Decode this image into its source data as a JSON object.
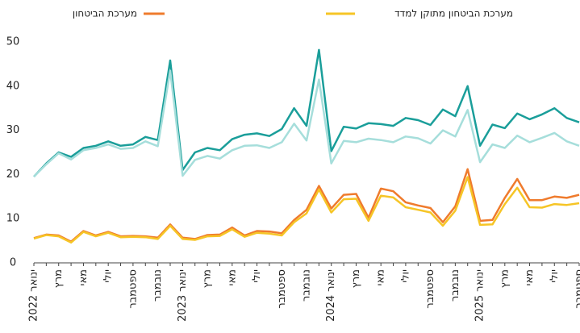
{
  "chart_data": {
    "type": "line",
    "categories": [
      "ינואר 2022",
      null,
      "מרץ",
      null,
      "מאי",
      null,
      "יולי",
      null,
      "ספטמבר",
      null,
      "נובמבר",
      null,
      "ינואר 2023",
      null,
      "מרץ",
      null,
      "מאי",
      null,
      "יולי",
      null,
      "ספטמבר",
      null,
      "נובמבר",
      null,
      "ינואר 2024",
      null,
      "מרץ",
      null,
      "מאי",
      null,
      "יולי",
      null,
      "ספטמבר",
      null,
      "נובמבר",
      null,
      "ינואר 2025",
      null,
      "מרץ",
      null,
      "מאי",
      null,
      "יולי",
      null,
      "ספטמבר"
    ],
    "series": [
      {
        "color": "#1a9e9a",
        "values": [
          19.5,
          22.5,
          25,
          24,
          26,
          26.5,
          27.5,
          26.5,
          26.8,
          28.5,
          27.8,
          45.8,
          21,
          25,
          26,
          25.5,
          28,
          29,
          29.3,
          28.7,
          30.3,
          35,
          31,
          48.2,
          25.3,
          30.8,
          30.4,
          31.6,
          31.4,
          31,
          32.8,
          32.3,
          31.2,
          34.7,
          33.2,
          40,
          26.5,
          31.3,
          30.5,
          33.8,
          32.5,
          33.6,
          35,
          32.8,
          31.8
        ]
      },
      {
        "color": "#a6dedb",
        "values": [
          19.5,
          22.3,
          24.8,
          23.4,
          25.5,
          26,
          26.8,
          25.8,
          26,
          27.5,
          26.4,
          43.5,
          19.7,
          23.3,
          24.2,
          23.6,
          25.5,
          26.5,
          26.6,
          26,
          27.3,
          31.5,
          27.7,
          41.5,
          22.5,
          27.6,
          27.3,
          28.1,
          27.8,
          27.3,
          28.6,
          28.2,
          27,
          30,
          28.6,
          34.6,
          22.8,
          26.8,
          26,
          28.8,
          27.3,
          28.3,
          29.4,
          27.5,
          26.5
        ]
      },
      {
        "name": "מערכת הביטחון",
        "color": "#ef7b2d",
        "values": [
          5.6,
          6.4,
          6.2,
          4.8,
          7.2,
          6.2,
          7,
          6,
          6.1,
          6,
          5.7,
          8.7,
          5.7,
          5.4,
          6.3,
          6.4,
          8,
          6.2,
          7.2,
          7.1,
          6.7,
          9.7,
          12,
          17.4,
          12.3,
          15.4,
          15.6,
          10.2,
          16.8,
          16.2,
          13.7,
          13,
          12.4,
          9.2,
          12.8,
          21.2,
          9.5,
          9.7,
          14.7,
          19,
          14.2,
          14.2,
          15,
          14.7,
          15.4
        ]
      },
      {
        "name": "מערכת הביטחון מתוקן למדד",
        "color": "#f6c526",
        "values": [
          5.5,
          6.3,
          6,
          4.6,
          7,
          6,
          6.8,
          5.8,
          5.9,
          5.8,
          5.4,
          8.4,
          5.4,
          5.2,
          6,
          6.1,
          7.6,
          5.9,
          6.8,
          6.6,
          6.2,
          9.2,
          11.2,
          16.6,
          11.4,
          14.4,
          14.5,
          9.5,
          15.2,
          14.8,
          12.6,
          12,
          11.4,
          8.4,
          11.8,
          19.4,
          8.6,
          8.7,
          13.3,
          17,
          12.6,
          12.5,
          13.3,
          13.1,
          13.5
        ]
      }
    ],
    "ylim": [
      0,
      50
    ],
    "yticks": [
      0,
      10,
      20,
      30,
      40,
      50
    ],
    "grid": false
  }
}
